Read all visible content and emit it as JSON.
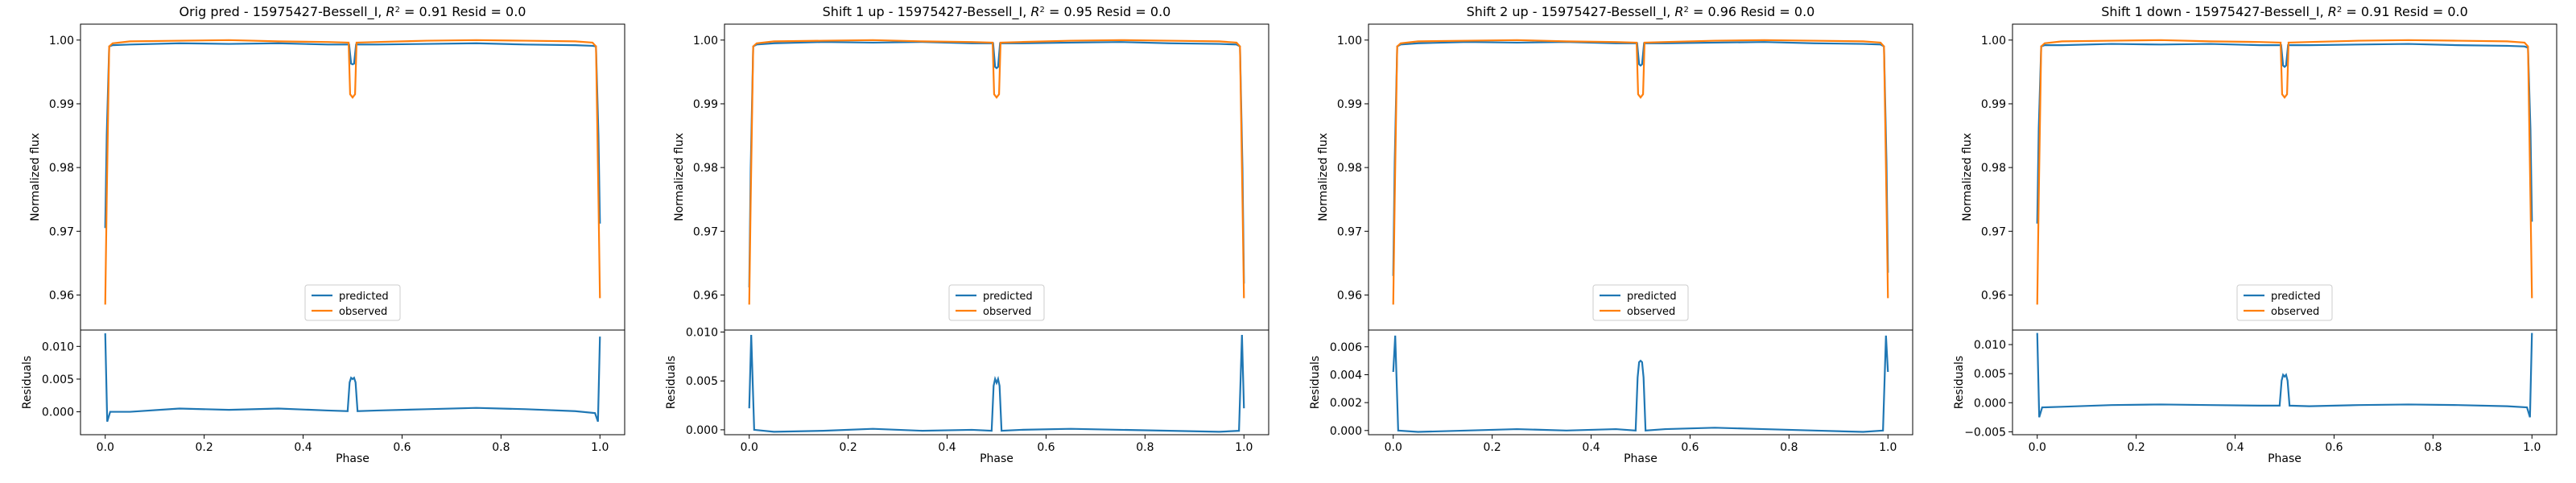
{
  "figure": {
    "panels": [
      {
        "title": "Orig pred - 15975427-Bessell_I, $R^2 = 0.91$ Resid = 0.0"
      },
      {
        "title": "Shift 1 up - 15975427-Bessell_I, $R^2 = 0.95$ Resid = 0.0"
      },
      {
        "title": "Shift 2 up - 15975427-Bessell_I, $R^2 = 0.96$ Resid = 0.0"
      },
      {
        "title": "Shift 1 down - 15975427-Bessell_I, $R^2 = 0.91$ Resid = 0.0"
      }
    ]
  },
  "colors": {
    "predicted": "#1f77b4",
    "observed": "#ff7f0e"
  },
  "chart_data": [
    {
      "type": "line",
      "title": "Orig pred - 15975427-Bessell_I, R² = 0.91 Resid = 0.0",
      "r2": 0.91,
      "resid": 0.0,
      "xlabel": "Phase",
      "ylabel": "Normalized flux",
      "ylabel_resid": "Residuals",
      "xlim": [
        -0.05,
        1.05
      ],
      "ylim": [
        0.9545,
        1.0025
      ],
      "resid_ylim": [
        -0.0035,
        0.0125
      ],
      "xticks": [
        0.0,
        0.2,
        0.4,
        0.6,
        0.8,
        1.0
      ],
      "xtick_labels": [
        "0.0",
        "0.2",
        "0.4",
        "0.6",
        "0.8",
        "1.0"
      ],
      "yticks": [
        0.96,
        0.97,
        0.98,
        0.99,
        1.0
      ],
      "ytick_labels": [
        "0.96",
        "0.97",
        "0.98",
        "0.99",
        "1.00"
      ],
      "resid_yticks": [
        0.0,
        0.005,
        0.01
      ],
      "resid_ytick_labels": [
        "0.000",
        "0.005",
        "0.010"
      ],
      "legend": {
        "position": "lower center",
        "entries": [
          "predicted",
          "observed"
        ]
      },
      "grid": false,
      "series": [
        {
          "name": "predicted",
          "color": "#1f77b4",
          "x": [
            0.0,
            0.003,
            0.008,
            0.015,
            0.05,
            0.15,
            0.25,
            0.35,
            0.45,
            0.493,
            0.497,
            0.5,
            0.503,
            0.507,
            0.55,
            0.65,
            0.75,
            0.85,
            0.95,
            0.985,
            0.992,
            0.997,
            1.0
          ],
          "y": [
            0.9705,
            0.985,
            0.999,
            0.9992,
            0.9993,
            0.9995,
            0.9994,
            0.9995,
            0.9993,
            0.9993,
            0.9963,
            0.9962,
            0.9963,
            0.9993,
            0.9993,
            0.9994,
            0.9995,
            0.9993,
            0.9992,
            0.9991,
            0.999,
            0.985,
            0.9712
          ]
        },
        {
          "name": "observed",
          "color": "#ff7f0e",
          "x": [
            0.0,
            0.003,
            0.008,
            0.015,
            0.05,
            0.15,
            0.25,
            0.35,
            0.45,
            0.492,
            0.495,
            0.5,
            0.505,
            0.508,
            0.55,
            0.65,
            0.75,
            0.85,
            0.95,
            0.985,
            0.992,
            0.997,
            1.0
          ],
          "y": [
            0.9585,
            0.975,
            0.999,
            0.9995,
            0.9998,
            0.9999,
            1.0,
            0.9998,
            0.9997,
            0.9996,
            0.9915,
            0.991,
            0.9915,
            0.9996,
            0.9997,
            0.9999,
            1.0,
            0.9999,
            0.9998,
            0.9996,
            0.999,
            0.975,
            0.9595
          ]
        },
        {
          "name": "residuals",
          "color": "#1f77b4",
          "x": [
            0.0,
            0.004,
            0.01,
            0.05,
            0.15,
            0.25,
            0.35,
            0.45,
            0.49,
            0.494,
            0.497,
            0.5,
            0.503,
            0.506,
            0.51,
            0.55,
            0.65,
            0.75,
            0.85,
            0.95,
            0.99,
            0.996,
            1.0
          ],
          "y": [
            0.012,
            -0.0015,
            0.0,
            0.0,
            0.0005,
            0.0003,
            0.0005,
            0.0002,
            0.0001,
            0.0045,
            0.0052,
            0.005,
            0.0052,
            0.0045,
            0.0001,
            0.0002,
            0.0004,
            0.0006,
            0.0004,
            0.0001,
            -0.0002,
            -0.0015,
            0.0115
          ]
        }
      ]
    },
    {
      "type": "line",
      "title": "Shift 1 up - 15975427-Bessell_I, R² = 0.95 Resid = 0.0",
      "r2": 0.95,
      "resid": 0.0,
      "xlabel": "Phase",
      "ylabel": "Normalized flux",
      "ylabel_resid": "Residuals",
      "xlim": [
        -0.05,
        1.05
      ],
      "ylim": [
        0.9545,
        1.0025
      ],
      "resid_ylim": [
        -0.0005,
        0.0102
      ],
      "xticks": [
        0.0,
        0.2,
        0.4,
        0.6,
        0.8,
        1.0
      ],
      "xtick_labels": [
        "0.0",
        "0.2",
        "0.4",
        "0.6",
        "0.8",
        "1.0"
      ],
      "yticks": [
        0.96,
        0.97,
        0.98,
        0.99,
        1.0
      ],
      "ytick_labels": [
        "0.96",
        "0.97",
        "0.98",
        "0.99",
        "1.00"
      ],
      "resid_yticks": [
        0.0,
        0.005,
        0.01
      ],
      "resid_ytick_labels": [
        "0.000",
        "0.005",
        "0.010"
      ],
      "legend": {
        "position": "lower center",
        "entries": [
          "predicted",
          "observed"
        ]
      },
      "grid": false,
      "series": [
        {
          "name": "predicted",
          "color": "#1f77b4",
          "x": [
            0.0,
            0.003,
            0.008,
            0.015,
            0.05,
            0.15,
            0.25,
            0.35,
            0.45,
            0.493,
            0.497,
            0.5,
            0.503,
            0.507,
            0.55,
            0.65,
            0.75,
            0.85,
            0.95,
            0.985,
            0.992,
            0.997,
            1.0
          ],
          "y": [
            0.9612,
            0.98,
            0.999,
            0.9993,
            0.9995,
            0.9997,
            0.9996,
            0.9997,
            0.9995,
            0.9995,
            0.9958,
            0.9956,
            0.9958,
            0.9995,
            0.9995,
            0.9996,
            0.9997,
            0.9995,
            0.9994,
            0.9993,
            0.999,
            0.98,
            0.9618
          ]
        },
        {
          "name": "observed",
          "color": "#ff7f0e",
          "x": [
            0.0,
            0.003,
            0.008,
            0.015,
            0.05,
            0.15,
            0.25,
            0.35,
            0.45,
            0.492,
            0.495,
            0.5,
            0.505,
            0.508,
            0.55,
            0.65,
            0.75,
            0.85,
            0.95,
            0.985,
            0.992,
            0.997,
            1.0
          ],
          "y": [
            0.9585,
            0.975,
            0.999,
            0.9995,
            0.9998,
            0.9999,
            1.0,
            0.9998,
            0.9997,
            0.9996,
            0.9915,
            0.991,
            0.9915,
            0.9996,
            0.9997,
            0.9999,
            1.0,
            0.9999,
            0.9998,
            0.9996,
            0.999,
            0.975,
            0.9595
          ]
        },
        {
          "name": "residuals",
          "color": "#1f77b4",
          "x": [
            0.0,
            0.004,
            0.01,
            0.05,
            0.15,
            0.25,
            0.35,
            0.45,
            0.49,
            0.494,
            0.497,
            0.5,
            0.503,
            0.506,
            0.51,
            0.55,
            0.65,
            0.75,
            0.85,
            0.95,
            0.99,
            0.996,
            1.0
          ],
          "y": [
            0.0022,
            0.0097,
            0.0,
            -0.0002,
            -0.0001,
            0.0001,
            -0.0001,
            0.0,
            -0.0001,
            0.0045,
            0.0052,
            0.0048,
            0.0052,
            0.0045,
            -0.0001,
            0.0,
            0.0001,
            0.0,
            -0.0001,
            -0.0002,
            -0.0001,
            0.0097,
            0.0022
          ]
        }
      ]
    },
    {
      "type": "line",
      "title": "Shift 2 up - 15975427-Bessell_I, R² = 0.96 Resid = 0.0",
      "r2": 0.96,
      "resid": 0.0,
      "xlabel": "Phase",
      "ylabel": "Normalized flux",
      "ylabel_resid": "Residuals",
      "xlim": [
        -0.05,
        1.05
      ],
      "ylim": [
        0.9545,
        1.0025
      ],
      "resid_ylim": [
        -0.0003,
        0.0072
      ],
      "xticks": [
        0.0,
        0.2,
        0.4,
        0.6,
        0.8,
        1.0
      ],
      "xtick_labels": [
        "0.0",
        "0.2",
        "0.4",
        "0.6",
        "0.8",
        "1.0"
      ],
      "yticks": [
        0.96,
        0.97,
        0.98,
        0.99,
        1.0
      ],
      "ytick_labels": [
        "0.96",
        "0.97",
        "0.98",
        "0.99",
        "1.00"
      ],
      "resid_yticks": [
        0.0,
        0.002,
        0.004,
        0.006
      ],
      "resid_ytick_labels": [
        "0.000",
        "0.002",
        "0.004",
        "0.006"
      ],
      "legend": {
        "position": "lower center",
        "entries": [
          "predicted",
          "observed"
        ]
      },
      "grid": false,
      "series": [
        {
          "name": "predicted",
          "color": "#1f77b4",
          "x": [
            0.0,
            0.003,
            0.008,
            0.015,
            0.05,
            0.15,
            0.25,
            0.35,
            0.45,
            0.493,
            0.497,
            0.5,
            0.503,
            0.507,
            0.55,
            0.65,
            0.75,
            0.85,
            0.95,
            0.985,
            0.992,
            0.997,
            1.0
          ],
          "y": [
            0.963,
            0.981,
            0.999,
            0.9993,
            0.9995,
            0.9997,
            0.9996,
            0.9997,
            0.9995,
            0.9995,
            0.9962,
            0.996,
            0.9962,
            0.9995,
            0.9995,
            0.9996,
            0.9997,
            0.9995,
            0.9994,
            0.9993,
            0.999,
            0.981,
            0.9635
          ]
        },
        {
          "name": "observed",
          "color": "#ff7f0e",
          "x": [
            0.0,
            0.003,
            0.008,
            0.015,
            0.05,
            0.15,
            0.25,
            0.35,
            0.45,
            0.492,
            0.495,
            0.5,
            0.505,
            0.508,
            0.55,
            0.65,
            0.75,
            0.85,
            0.95,
            0.985,
            0.992,
            0.997,
            1.0
          ],
          "y": [
            0.9585,
            0.975,
            0.999,
            0.9995,
            0.9998,
            0.9999,
            1.0,
            0.9998,
            0.9997,
            0.9996,
            0.9915,
            0.991,
            0.9915,
            0.9996,
            0.9997,
            0.9999,
            1.0,
            0.9999,
            0.9998,
            0.9996,
            0.999,
            0.975,
            0.9595
          ]
        },
        {
          "name": "residuals",
          "color": "#1f77b4",
          "x": [
            0.0,
            0.004,
            0.01,
            0.05,
            0.15,
            0.25,
            0.35,
            0.45,
            0.49,
            0.494,
            0.497,
            0.5,
            0.503,
            0.506,
            0.51,
            0.55,
            0.65,
            0.75,
            0.85,
            0.95,
            0.99,
            0.996,
            1.0
          ],
          "y": [
            0.0042,
            0.0068,
            0.0,
            -0.0001,
            0.0,
            0.0001,
            0.0,
            0.0001,
            0.0,
            0.0038,
            0.0049,
            0.005,
            0.0049,
            0.0038,
            0.0,
            0.0001,
            0.0002,
            0.0001,
            0.0,
            -0.0001,
            0.0,
            0.0068,
            0.0042
          ]
        }
      ]
    },
    {
      "type": "line",
      "title": "Shift 1 down - 15975427-Bessell_I, R² = 0.91 Resid = 0.0",
      "r2": 0.91,
      "resid": 0.0,
      "xlabel": "Phase",
      "ylabel": "Normalized flux",
      "ylabel_resid": "Residuals",
      "xlim": [
        -0.05,
        1.05
      ],
      "ylim": [
        0.9545,
        1.0025
      ],
      "resid_ylim": [
        -0.0055,
        0.0125
      ],
      "xticks": [
        0.0,
        0.2,
        0.4,
        0.6,
        0.8,
        1.0
      ],
      "xtick_labels": [
        "0.0",
        "0.2",
        "0.4",
        "0.6",
        "0.8",
        "1.0"
      ],
      "yticks": [
        0.96,
        0.97,
        0.98,
        0.99,
        1.0
      ],
      "ytick_labels": [
        "0.96",
        "0.97",
        "0.98",
        "0.99",
        "1.00"
      ],
      "resid_yticks": [
        -0.005,
        0.0,
        0.005,
        0.01
      ],
      "resid_ytick_labels": [
        "−0.005",
        "0.000",
        "0.005",
        "0.010"
      ],
      "legend": {
        "position": "lower center",
        "entries": [
          "predicted",
          "observed"
        ]
      },
      "grid": false,
      "series": [
        {
          "name": "predicted",
          "color": "#1f77b4",
          "x": [
            0.0,
            0.003,
            0.008,
            0.015,
            0.05,
            0.15,
            0.25,
            0.35,
            0.45,
            0.493,
            0.497,
            0.5,
            0.503,
            0.507,
            0.55,
            0.65,
            0.75,
            0.85,
            0.95,
            0.985,
            0.992,
            0.997,
            1.0
          ],
          "y": [
            0.9712,
            0.986,
            0.999,
            0.9992,
            0.9992,
            0.9994,
            0.9993,
            0.9994,
            0.9992,
            0.9992,
            0.996,
            0.9958,
            0.996,
            0.9992,
            0.9992,
            0.9993,
            0.9994,
            0.9992,
            0.9991,
            0.999,
            0.9988,
            0.986,
            0.9715
          ]
        },
        {
          "name": "observed",
          "color": "#ff7f0e",
          "x": [
            0.0,
            0.003,
            0.008,
            0.015,
            0.05,
            0.15,
            0.25,
            0.35,
            0.45,
            0.492,
            0.495,
            0.5,
            0.505,
            0.508,
            0.55,
            0.65,
            0.75,
            0.85,
            0.95,
            0.985,
            0.992,
            0.997,
            1.0
          ],
          "y": [
            0.9585,
            0.975,
            0.999,
            0.9995,
            0.9998,
            0.9999,
            1.0,
            0.9998,
            0.9997,
            0.9996,
            0.9915,
            0.991,
            0.9915,
            0.9996,
            0.9997,
            0.9999,
            1.0,
            0.9999,
            0.9998,
            0.9996,
            0.999,
            0.975,
            0.9595
          ]
        },
        {
          "name": "residuals",
          "color": "#1f77b4",
          "x": [
            0.0,
            0.004,
            0.01,
            0.05,
            0.15,
            0.25,
            0.35,
            0.45,
            0.49,
            0.494,
            0.497,
            0.5,
            0.503,
            0.506,
            0.51,
            0.55,
            0.65,
            0.75,
            0.85,
            0.95,
            0.99,
            0.996,
            1.0
          ],
          "y": [
            0.012,
            -0.0025,
            -0.0008,
            -0.0007,
            -0.0004,
            -0.0003,
            -0.0004,
            -0.0005,
            -0.0005,
            0.0038,
            0.0048,
            0.0045,
            0.0048,
            0.0038,
            -0.0005,
            -0.0006,
            -0.0004,
            -0.0003,
            -0.0004,
            -0.0006,
            -0.0008,
            -0.0025,
            0.012
          ]
        }
      ]
    }
  ]
}
